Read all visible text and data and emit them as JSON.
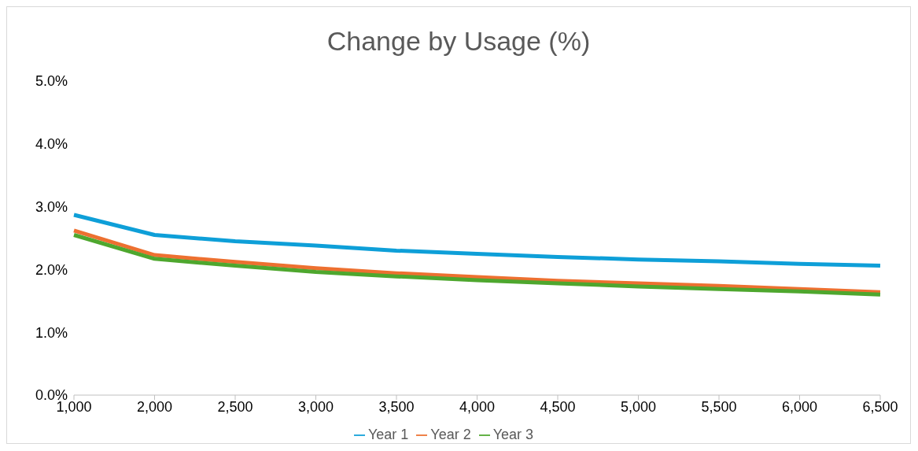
{
  "chart_data": {
    "type": "line",
    "title": "Change by Usage (%)",
    "categories": [
      "1,000",
      "2,000",
      "2,500",
      "3,000",
      "3,500",
      "4,000",
      "4,500",
      "5,000",
      "5,500",
      "6,000",
      "6,500"
    ],
    "series": [
      {
        "name": "Year 1",
        "color": "#0e9fd8",
        "values": [
          2.87,
          2.55,
          2.45,
          2.38,
          2.3,
          2.25,
          2.2,
          2.16,
          2.13,
          2.09,
          2.06
        ]
      },
      {
        "name": "Year 2",
        "color": "#ed7030",
        "values": [
          2.62,
          2.23,
          2.12,
          2.02,
          1.94,
          1.88,
          1.82,
          1.78,
          1.74,
          1.69,
          1.64
        ]
      },
      {
        "name": "Year 3",
        "color": "#4ea72e",
        "values": [
          2.55,
          2.17,
          2.06,
          1.96,
          1.89,
          1.83,
          1.78,
          1.73,
          1.69,
          1.65,
          1.6
        ]
      }
    ],
    "ylim": [
      0,
      5
    ],
    "yticks": [
      {
        "value": 0,
        "label": "0.0%"
      },
      {
        "value": 1,
        "label": "1.0%"
      },
      {
        "value": 2,
        "label": "2.0%"
      },
      {
        "value": 3,
        "label": "3.0%"
      },
      {
        "value": 4,
        "label": "4.0%"
      },
      {
        "value": 5,
        "label": "5.0%"
      }
    ],
    "grid": false,
    "legend": "bottom",
    "marker": "none",
    "line_style": "solid"
  }
}
